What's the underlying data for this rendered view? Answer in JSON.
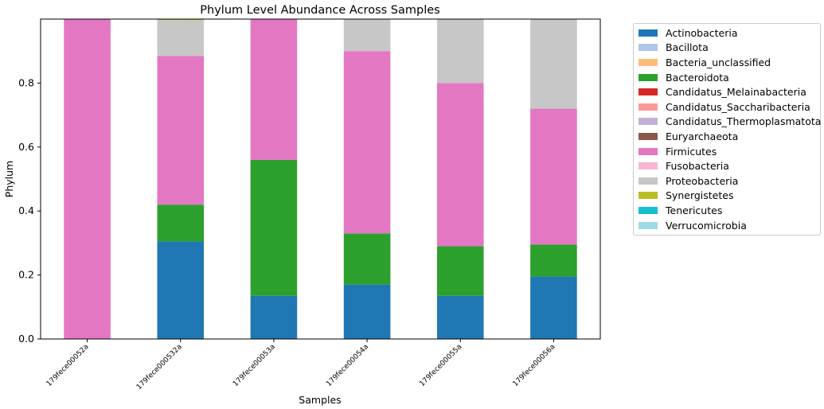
{
  "chart_data": {
    "type": "bar",
    "stacked": true,
    "title": "Phylum Level Abundance Across Samples",
    "xlabel": "Samples",
    "ylabel": "Phylum",
    "ylim": [
      0,
      1.0
    ],
    "yticks": [
      "0.0",
      "0.2",
      "0.4",
      "0.6",
      "0.8"
    ],
    "categories": [
      "179fece00052a",
      "179fece000532a",
      "179fece00053a",
      "179fece00054a",
      "179fece00055a",
      "179fece00056a"
    ],
    "grid": false,
    "legend_position": "outside-right",
    "series": [
      {
        "name": "Actinobacteria",
        "color": "#1f77b4",
        "values": [
          0.0,
          0.305,
          0.135,
          0.17,
          0.135,
          0.195
        ]
      },
      {
        "name": "Bacillota",
        "color": "#aec7e8",
        "values": [
          0,
          0,
          0,
          0,
          0,
          0
        ]
      },
      {
        "name": "Bacteria_unclassified",
        "color": "#ffbb78",
        "values": [
          0,
          0,
          0,
          0,
          0,
          0
        ]
      },
      {
        "name": "Bacteroidota",
        "color": "#2ca02c",
        "values": [
          0.0,
          0.115,
          0.425,
          0.16,
          0.155,
          0.1
        ]
      },
      {
        "name": "Candidatus_Melainabacteria",
        "color": "#d62728",
        "values": [
          0,
          0,
          0,
          0,
          0,
          0
        ]
      },
      {
        "name": "Candidatus_Saccharibacteria",
        "color": "#ff9896",
        "values": [
          0,
          0,
          0,
          0,
          0,
          0
        ]
      },
      {
        "name": "Candidatus_Thermoplasmatota",
        "color": "#c5b0d5",
        "values": [
          0,
          0,
          0,
          0,
          0,
          0
        ]
      },
      {
        "name": "Euryarchaeota",
        "color": "#8c564b",
        "values": [
          0,
          0,
          0,
          0,
          0,
          0
        ]
      },
      {
        "name": "Firmicutes",
        "color": "#e377c2",
        "values": [
          1.0,
          0.465,
          0.44,
          0.57,
          0.51,
          0.425
        ]
      },
      {
        "name": "Fusobacteria",
        "color": "#f7b6d2",
        "values": [
          0,
          0,
          0,
          0,
          0,
          0
        ]
      },
      {
        "name": "Proteobacteria",
        "color": "#c7c7c7",
        "values": [
          0.0,
          0.112,
          0.0,
          0.1,
          0.2,
          0.28
        ]
      },
      {
        "name": "Synergistetes",
        "color": "#bcbd22",
        "values": [
          0.0,
          0.003,
          0.0,
          0.0,
          0.0,
          0.0
        ]
      },
      {
        "name": "Tenericutes",
        "color": "#17becf",
        "values": [
          0,
          0,
          0,
          0,
          0,
          0
        ]
      },
      {
        "name": "Verrucomicrobia",
        "color": "#9edae5",
        "values": [
          0,
          0,
          0,
          0,
          0,
          0
        ]
      }
    ]
  }
}
